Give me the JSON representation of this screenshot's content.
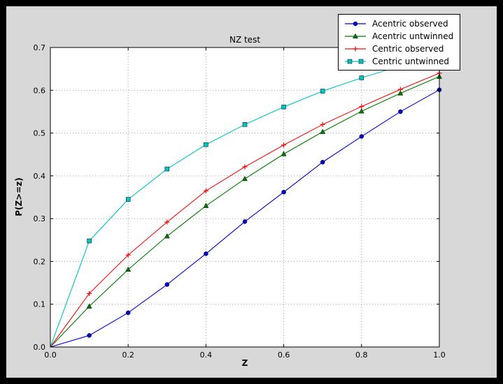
{
  "chart_data": {
    "type": "line",
    "title": "NZ test",
    "xlabel": "Z",
    "ylabel": "P(Z>=z)",
    "xlim": [
      0.0,
      1.0
    ],
    "ylim": [
      0.0,
      0.7
    ],
    "x_ticks": [
      0.0,
      0.2,
      0.4,
      0.6,
      0.8,
      1.0
    ],
    "y_ticks": [
      0.0,
      0.1,
      0.2,
      0.3,
      0.4,
      0.5,
      0.6,
      0.7
    ],
    "grid": "dotted",
    "legend_position": "upper right",
    "x": [
      0.0,
      0.1,
      0.2,
      0.3,
      0.4,
      0.5,
      0.6,
      0.7,
      0.8,
      0.9,
      1.0
    ],
    "series": [
      {
        "name": "Acentric observed",
        "color": "#0000cd",
        "marker": "circle",
        "values": [
          0.0,
          0.027,
          0.08,
          0.146,
          0.218,
          0.293,
          0.362,
          0.432,
          0.492,
          0.55,
          0.601
        ]
      },
      {
        "name": "Acentric untwinned",
        "color": "#007a00",
        "marker": "triangle",
        "values": [
          0.0,
          0.095,
          0.181,
          0.259,
          0.33,
          0.393,
          0.451,
          0.503,
          0.551,
          0.593,
          0.632
        ]
      },
      {
        "name": "Centric observed",
        "color": "#ee1010",
        "marker": "plus",
        "values": [
          0.0,
          0.125,
          0.215,
          0.292,
          0.365,
          0.421,
          0.472,
          0.52,
          0.562,
          0.602,
          0.64
        ]
      },
      {
        "name": "Centric untwinned",
        "color": "#00c3c3",
        "marker": "square",
        "values": [
          0.0,
          0.248,
          0.345,
          0.416,
          0.473,
          0.52,
          0.561,
          0.598,
          0.629,
          0.657,
          0.683
        ]
      }
    ]
  },
  "colors": {
    "outer_bg": "#000000",
    "figure_bg": "#d8d8d8",
    "plot_bg": "#ffffff",
    "grid": "#9e9e9e",
    "axis": "#000000",
    "marker_edge": "#000000"
  }
}
